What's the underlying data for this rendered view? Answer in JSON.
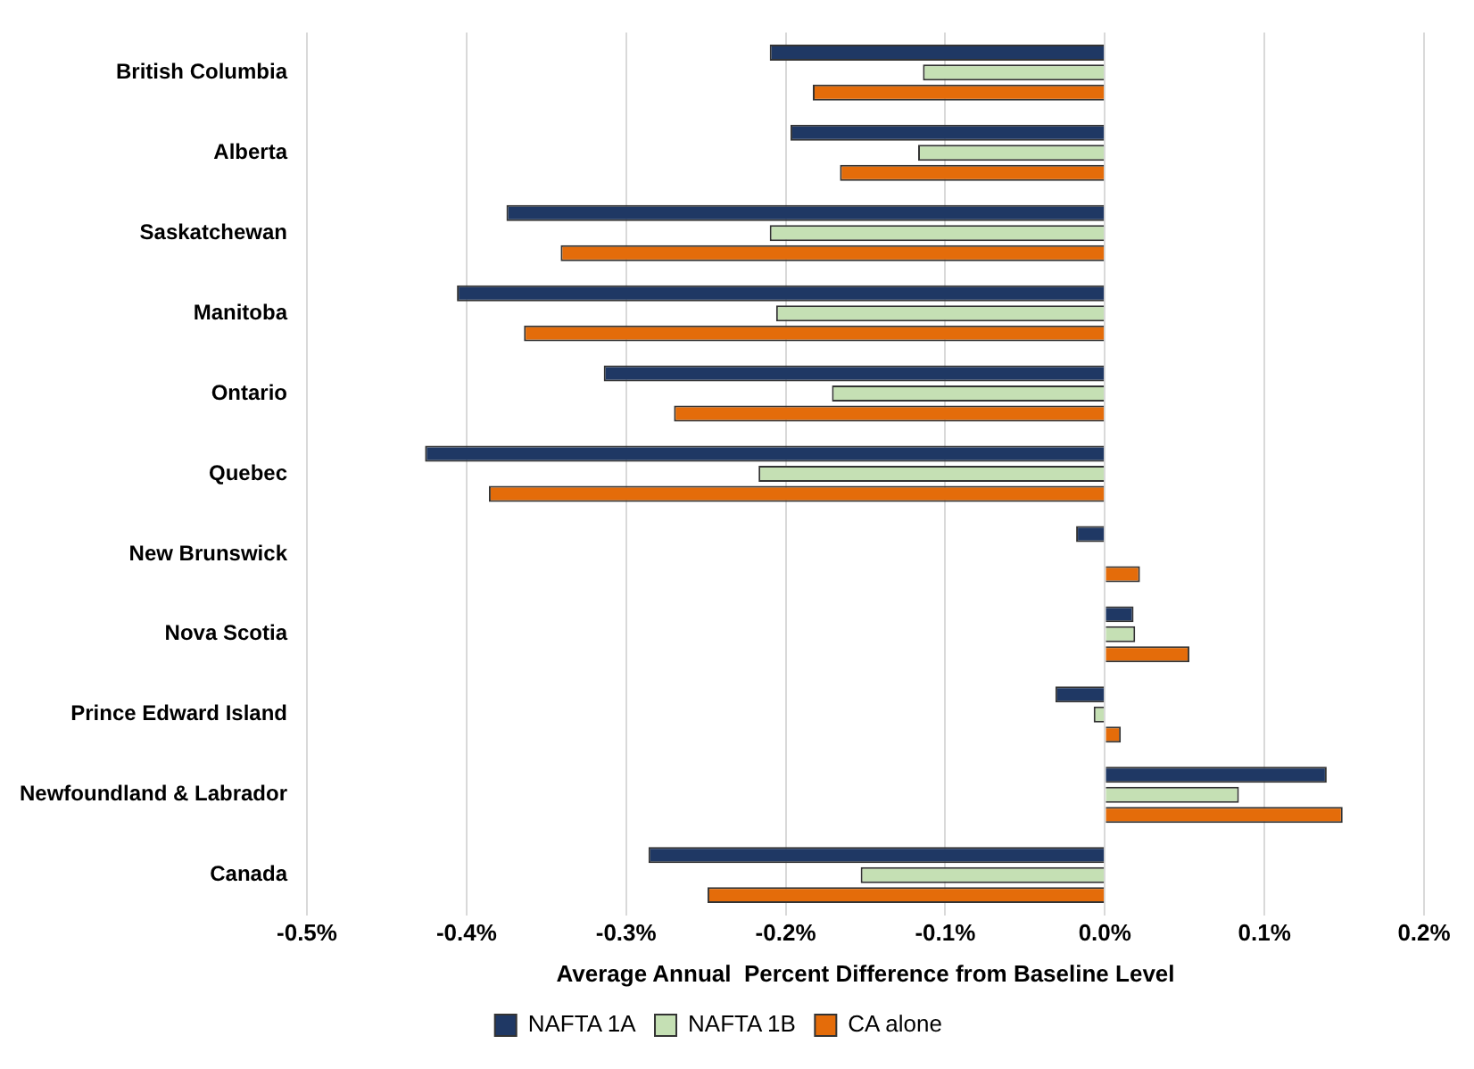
{
  "chart_data": {
    "type": "bar",
    "orientation": "horizontal",
    "xlabel": "Average Annual  Percent Difference from Baseline Level",
    "categories": [
      "British Columbia",
      "Alberta",
      "Saskatchewan",
      "Manitoba",
      "Ontario",
      "Quebec",
      "New Brunswick",
      "Nova Scotia",
      "Prince Edward Island",
      "Newfoundland & Labrador",
      "Canada"
    ],
    "series": [
      {
        "name": "NAFTA 1A",
        "color": "#1f3864",
        "values": [
          -0.21,
          -0.197,
          -0.375,
          -0.406,
          -0.314,
          -0.426,
          -0.018,
          0.018,
          -0.031,
          0.139,
          -0.286
        ]
      },
      {
        "name": "NAFTA 1B",
        "color": "#c5e0b4",
        "values": [
          -0.114,
          -0.117,
          -0.21,
          -0.206,
          -0.171,
          -0.217,
          null,
          0.019,
          -0.007,
          0.084,
          -0.153
        ]
      },
      {
        "name": "CA alone",
        "color": "#e46c0a",
        "values": [
          -0.183,
          -0.166,
          -0.341,
          -0.364,
          -0.27,
          -0.386,
          0.022,
          0.053,
          0.01,
          0.149,
          -0.249
        ]
      }
    ],
    "xlim": [
      -0.5,
      0.2
    ],
    "xticks": [
      {
        "value": -0.5,
        "label": "-0.5%"
      },
      {
        "value": -0.4,
        "label": "-0.4%"
      },
      {
        "value": -0.3,
        "label": "-0.3%"
      },
      {
        "value": -0.2,
        "label": "-0.2%"
      },
      {
        "value": -0.1,
        "label": "-0.1%"
      },
      {
        "value": 0,
        "label": "0.0%"
      },
      {
        "value": 0.1,
        "label": "0.1%"
      },
      {
        "value": 0.2,
        "label": "0.2%"
      }
    ],
    "grid": "x",
    "legend": "bottom"
  }
}
